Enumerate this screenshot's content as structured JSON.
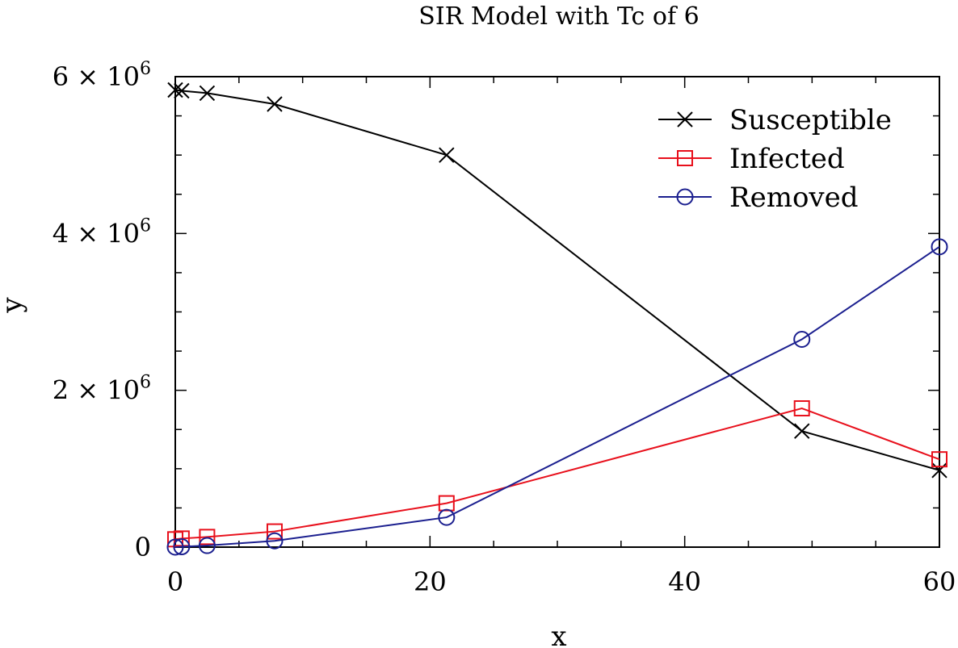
{
  "chart_data": {
    "type": "line",
    "title": "SIR Model with Tc of 6",
    "xlabel": "x",
    "ylabel": "y",
    "xlim": [
      0,
      60
    ],
    "ylim": [
      0,
      6000000
    ],
    "x_ticks": [
      {
        "value": 0,
        "label": "0"
      },
      {
        "value": 20,
        "label": "20"
      },
      {
        "value": 40,
        "label": "40"
      },
      {
        "value": 60,
        "label": "60"
      }
    ],
    "y_ticks": [
      {
        "value": 0,
        "label": "0",
        "exp": ""
      },
      {
        "value": 2000000,
        "label": "2 × 10",
        "exp": "6"
      },
      {
        "value": 4000000,
        "label": "4 × 10",
        "exp": "6"
      },
      {
        "value": 6000000,
        "label": "6 × 10",
        "exp": "6"
      }
    ],
    "legend_position": "top-right",
    "series": [
      {
        "name": "Susceptible",
        "color": "#000000",
        "marker": "x",
        "x": [
          0,
          0.5,
          2.5,
          7.8,
          21.3,
          49.2,
          60
        ],
        "y": [
          5830000,
          5820000,
          5790000,
          5650000,
          5000000,
          1480000,
          980000
        ]
      },
      {
        "name": "Infected",
        "color": "#e8101c",
        "marker": "square",
        "x": [
          0,
          0.5,
          2.5,
          7.8,
          21.3,
          49.2,
          60
        ],
        "y": [
          100000,
          110000,
          130000,
          200000,
          560000,
          1770000,
          1120000
        ]
      },
      {
        "name": "Removed",
        "color": "#1b1f8f",
        "marker": "circle",
        "x": [
          0,
          0.5,
          2.5,
          7.8,
          21.3,
          49.2,
          60
        ],
        "y": [
          0,
          5000,
          20000,
          80000,
          380000,
          2650000,
          3830000
        ]
      }
    ]
  }
}
